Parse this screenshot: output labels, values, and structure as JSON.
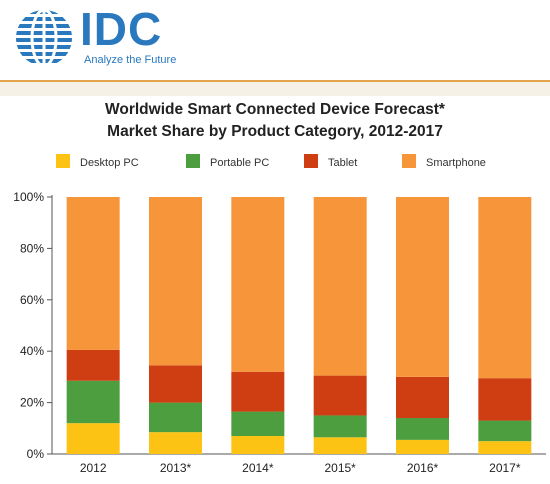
{
  "logo": {
    "name": "IDC",
    "tagline": "Analyze the Future"
  },
  "chart_data": {
    "type": "bar",
    "stacked": true,
    "title_lines": [
      "Worldwide Smart Connected Device Forecast*",
      "Market Share by Product Category, 2012-2017"
    ],
    "categories": [
      "2012",
      "2013*",
      "2014*",
      "2015*",
      "2016*",
      "2017*"
    ],
    "series": [
      {
        "name": "Desktop PC",
        "color": "#fcc314",
        "values": [
          12,
          8.5,
          7,
          6.5,
          5.5,
          5
        ]
      },
      {
        "name": "Portable PC",
        "color": "#4d9e3f",
        "values": [
          16.5,
          11.5,
          9.5,
          8.5,
          8.5,
          8
        ]
      },
      {
        "name": "Tablet",
        "color": "#cf3d12",
        "values": [
          12,
          14.5,
          15.5,
          15.5,
          16,
          16.5
        ]
      },
      {
        "name": "Smartphone",
        "color": "#f7953a",
        "values": [
          59.5,
          65.5,
          68,
          69.5,
          70,
          70.5
        ]
      }
    ],
    "ylim": [
      0,
      100
    ],
    "yticks": [
      "0%",
      "20%",
      "40%",
      "60%",
      "80%",
      "100%"
    ],
    "grid": false,
    "legend_position": "top"
  }
}
